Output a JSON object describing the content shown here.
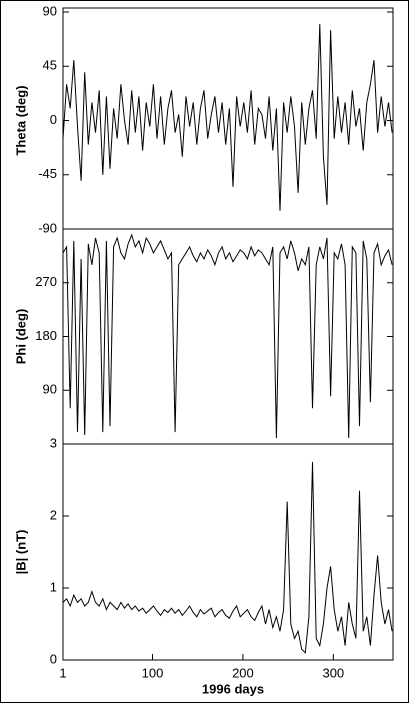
{
  "chart_data": [
    {
      "type": "line",
      "ylabel": "Theta (deg)",
      "color": "#000000",
      "x": [
        1,
        5,
        9,
        13,
        17,
        21,
        25,
        29,
        33,
        37,
        41,
        45,
        49,
        53,
        57,
        61,
        65,
        69,
        73,
        77,
        81,
        85,
        89,
        93,
        97,
        101,
        105,
        109,
        113,
        117,
        121,
        125,
        129,
        133,
        137,
        141,
        145,
        149,
        153,
        157,
        161,
        165,
        169,
        173,
        177,
        181,
        185,
        189,
        193,
        197,
        201,
        205,
        209,
        213,
        217,
        221,
        225,
        229,
        233,
        237,
        241,
        245,
        249,
        253,
        257,
        261,
        265,
        269,
        273,
        277,
        281,
        285,
        289,
        293,
        297,
        301,
        305,
        309,
        313,
        317,
        321,
        325,
        329,
        333,
        337,
        341,
        345,
        349,
        353,
        357,
        361,
        365
      ],
      "values": [
        -15,
        30,
        10,
        50,
        -5,
        -50,
        40,
        -20,
        15,
        -10,
        25,
        -45,
        20,
        -40,
        10,
        -15,
        30,
        0,
        -20,
        25,
        -10,
        20,
        -25,
        15,
        -5,
        30,
        -15,
        20,
        -20,
        10,
        25,
        -10,
        5,
        -30,
        20,
        -5,
        15,
        -20,
        10,
        25,
        -15,
        5,
        20,
        -10,
        15,
        -20,
        10,
        -55,
        20,
        -5,
        15,
        -10,
        25,
        -20,
        10,
        5,
        -15,
        20,
        -25,
        10,
        -75,
        15,
        -10,
        20,
        -5,
        -60,
        15,
        -20,
        10,
        25,
        -15,
        80,
        -30,
        -70,
        75,
        -15,
        20,
        -10,
        15,
        -20,
        25,
        -5,
        10,
        -25,
        15,
        30,
        50,
        -10,
        20,
        -5,
        15,
        -10
      ],
      "xlim": [
        1,
        366
      ],
      "ylim": [
        -90,
        90
      ],
      "yticks": [
        90,
        45,
        0,
        -45,
        -90
      ]
    },
    {
      "type": "line",
      "ylabel": "Phi (deg)",
      "color": "#000000",
      "x": [
        1,
        5,
        9,
        13,
        17,
        21,
        25,
        29,
        33,
        37,
        41,
        45,
        49,
        53,
        57,
        61,
        65,
        69,
        73,
        77,
        81,
        85,
        89,
        93,
        97,
        101,
        105,
        109,
        113,
        117,
        121,
        125,
        129,
        133,
        137,
        141,
        145,
        149,
        153,
        157,
        161,
        165,
        169,
        173,
        177,
        181,
        185,
        189,
        193,
        197,
        201,
        205,
        209,
        213,
        217,
        221,
        225,
        229,
        233,
        237,
        241,
        245,
        249,
        253,
        257,
        261,
        265,
        269,
        273,
        277,
        281,
        285,
        289,
        293,
        297,
        301,
        305,
        309,
        313,
        317,
        321,
        325,
        329,
        333,
        337,
        341,
        345,
        349,
        353,
        357,
        361,
        365
      ],
      "values": [
        320,
        330,
        60,
        340,
        20,
        310,
        15,
        335,
        300,
        345,
        320,
        20,
        340,
        30,
        330,
        345,
        320,
        310,
        335,
        350,
        330,
        340,
        320,
        345,
        335,
        320,
        330,
        340,
        325,
        310,
        320,
        20,
        300,
        310,
        320,
        330,
        315,
        305,
        320,
        310,
        325,
        315,
        300,
        320,
        330,
        310,
        320,
        305,
        315,
        325,
        320,
        310,
        330,
        315,
        325,
        320,
        310,
        300,
        330,
        10,
        320,
        330,
        310,
        340,
        320,
        290,
        310,
        300,
        330,
        60,
        300,
        330,
        310,
        345,
        80,
        320,
        310,
        335,
        300,
        10,
        330,
        320,
        30,
        340,
        310,
        70,
        320,
        335,
        300,
        315,
        325,
        300
      ],
      "xlim": [
        1,
        366
      ],
      "ylim": [
        0,
        360
      ],
      "yticks": [
        270,
        180,
        90
      ]
    },
    {
      "type": "line",
      "ylabel": "|B| (nT)",
      "xlabel": "1996 days",
      "color": "#000000",
      "x": [
        1,
        5,
        9,
        13,
        17,
        21,
        25,
        29,
        33,
        37,
        41,
        45,
        49,
        53,
        57,
        61,
        65,
        69,
        73,
        77,
        81,
        85,
        89,
        93,
        97,
        101,
        105,
        109,
        113,
        117,
        121,
        125,
        129,
        133,
        137,
        141,
        145,
        149,
        153,
        157,
        161,
        165,
        169,
        173,
        177,
        181,
        185,
        189,
        193,
        197,
        201,
        205,
        209,
        213,
        217,
        221,
        225,
        229,
        233,
        237,
        241,
        245,
        249,
        253,
        257,
        261,
        265,
        269,
        273,
        277,
        281,
        285,
        289,
        293,
        297,
        301,
        305,
        309,
        313,
        317,
        321,
        325,
        329,
        333,
        337,
        341,
        345,
        349,
        353,
        357,
        361,
        365
      ],
      "values": [
        0.8,
        0.85,
        0.75,
        0.9,
        0.8,
        0.85,
        0.75,
        0.8,
        0.95,
        0.8,
        0.75,
        0.85,
        0.7,
        0.8,
        0.75,
        0.7,
        0.8,
        0.72,
        0.78,
        0.7,
        0.75,
        0.68,
        0.72,
        0.65,
        0.7,
        0.75,
        0.68,
        0.62,
        0.7,
        0.66,
        0.72,
        0.65,
        0.7,
        0.62,
        0.68,
        0.75,
        0.66,
        0.6,
        0.7,
        0.64,
        0.68,
        0.72,
        0.6,
        0.66,
        0.7,
        0.62,
        0.58,
        0.68,
        0.75,
        0.6,
        0.65,
        0.7,
        0.6,
        0.55,
        0.66,
        0.75,
        0.5,
        0.7,
        0.45,
        0.6,
        0.4,
        0.7,
        2.2,
        0.5,
        0.3,
        0.4,
        0.15,
        0.1,
        0.6,
        2.75,
        0.3,
        0.2,
        0.5,
        1.0,
        1.3,
        0.7,
        0.4,
        0.6,
        0.2,
        0.8,
        0.5,
        0.3,
        2.35,
        0.4,
        0.6,
        0.2,
        0.9,
        1.45,
        0.8,
        0.5,
        0.7,
        0.4
      ],
      "xlim": [
        1,
        366
      ],
      "ylim": [
        0,
        3
      ],
      "yticks": [
        0,
        1,
        2,
        3
      ],
      "xticks": [
        1,
        100,
        200,
        300
      ]
    }
  ]
}
